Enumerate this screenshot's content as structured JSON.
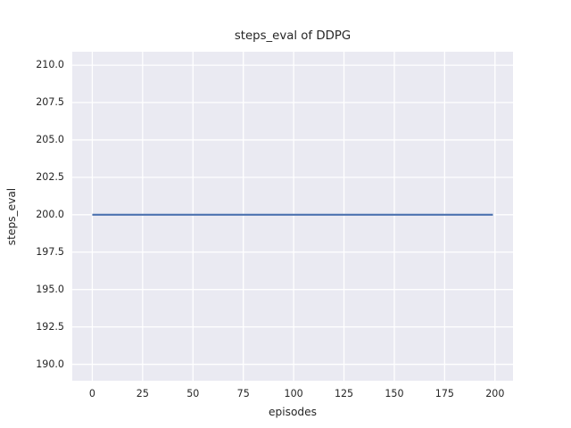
{
  "chart_data": {
    "type": "line",
    "title": "steps_eval of DDPG",
    "xlabel": "episodes",
    "ylabel": "steps_eval",
    "x_ticks": [
      0,
      25,
      50,
      75,
      100,
      125,
      150,
      175,
      200
    ],
    "x_tick_labels": [
      "0",
      "25",
      "50",
      "75",
      "100",
      "125",
      "150",
      "175",
      "200"
    ],
    "y_ticks": [
      190.0,
      192.5,
      195.0,
      197.5,
      200.0,
      202.5,
      205.0,
      207.5,
      210.0
    ],
    "y_tick_labels": [
      "190.0",
      "192.5",
      "195.0",
      "197.5",
      "200.0",
      "202.5",
      "205.0",
      "207.5",
      "210.0"
    ],
    "xlim": [
      -9.95,
      208.95
    ],
    "ylim": [
      188.9,
      210.9
    ],
    "grid": true,
    "legend_position": "none",
    "series": [
      {
        "name": "steps_eval",
        "x": [
          0,
          199
        ],
        "y": [
          200,
          200
        ],
        "color": "#4C72B0",
        "linewidth": 2.2
      }
    ],
    "colors": {
      "figure_background": "#FFFFFF",
      "plot_background": "#EAEAF2",
      "grid": "#FFFFFF",
      "text": "#262626"
    }
  }
}
